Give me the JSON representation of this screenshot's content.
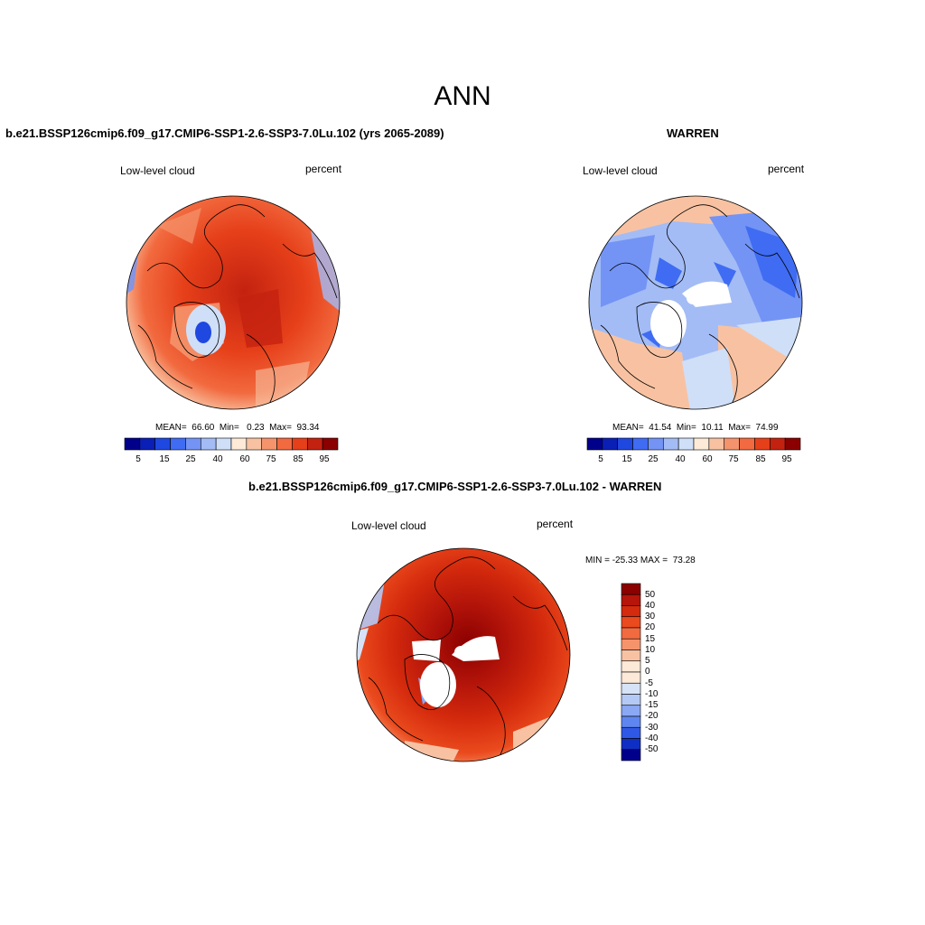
{
  "title": "ANN",
  "panel_top_left": {
    "case_title": "b.e21.BSSP126cmip6.f09_g17.CMIP6-SSP1-2.6-SSP3-7.0Lu.102 (yrs 2065-2089)",
    "left_label": "Low-level cloud",
    "right_label": "percent",
    "stats": "MEAN=  66.60  Min=   0.23  Max=  93.34",
    "colorbar_labels": [
      "5",
      "15",
      "25",
      "40",
      "60",
      "75",
      "85",
      "95"
    ]
  },
  "panel_top_right": {
    "case_title": "WARREN",
    "left_label": "Low-level cloud",
    "right_label": "percent",
    "stats": "MEAN=  41.54  Min=  10.11  Max=  74.99",
    "colorbar_labels": [
      "5",
      "15",
      "25",
      "40",
      "60",
      "75",
      "85",
      "95"
    ]
  },
  "panel_bottom": {
    "case_title": "b.e21.BSSP126cmip6.f09_g17.CMIP6-SSP1-2.6-SSP3-7.0Lu.102 - WARREN",
    "left_label": "Low-level cloud",
    "right_label": "percent",
    "minmax": "MIN = -25.33 MAX =  73.28",
    "colorbar_labels": [
      "50",
      "40",
      "30",
      "20",
      "15",
      "10",
      "5",
      "0",
      "-5",
      "-10",
      "-15",
      "-20",
      "-30",
      "-40",
      "-50"
    ]
  },
  "colors": {
    "abs_scale": [
      "#00008b",
      "#0a1fb5",
      "#1e48e0",
      "#3f6cf2",
      "#7394f5",
      "#a3bcf6",
      "#cfdff8",
      "#fdebd8",
      "#f8c2a2",
      "#f5946c",
      "#f26a3f",
      "#e6401a",
      "#c42210",
      "#8b0000"
    ],
    "diff_scale": [
      "#8b0000",
      "#b5150a",
      "#d42a0d",
      "#ea4a1d",
      "#f26a3f",
      "#f5946c",
      "#f8c2a2",
      "#fde9d8",
      "#d6e3f6",
      "#b4c9f5",
      "#8aa8f4",
      "#5f86f0",
      "#2f58e6",
      "#0f2fc4",
      "#00008b"
    ]
  }
}
